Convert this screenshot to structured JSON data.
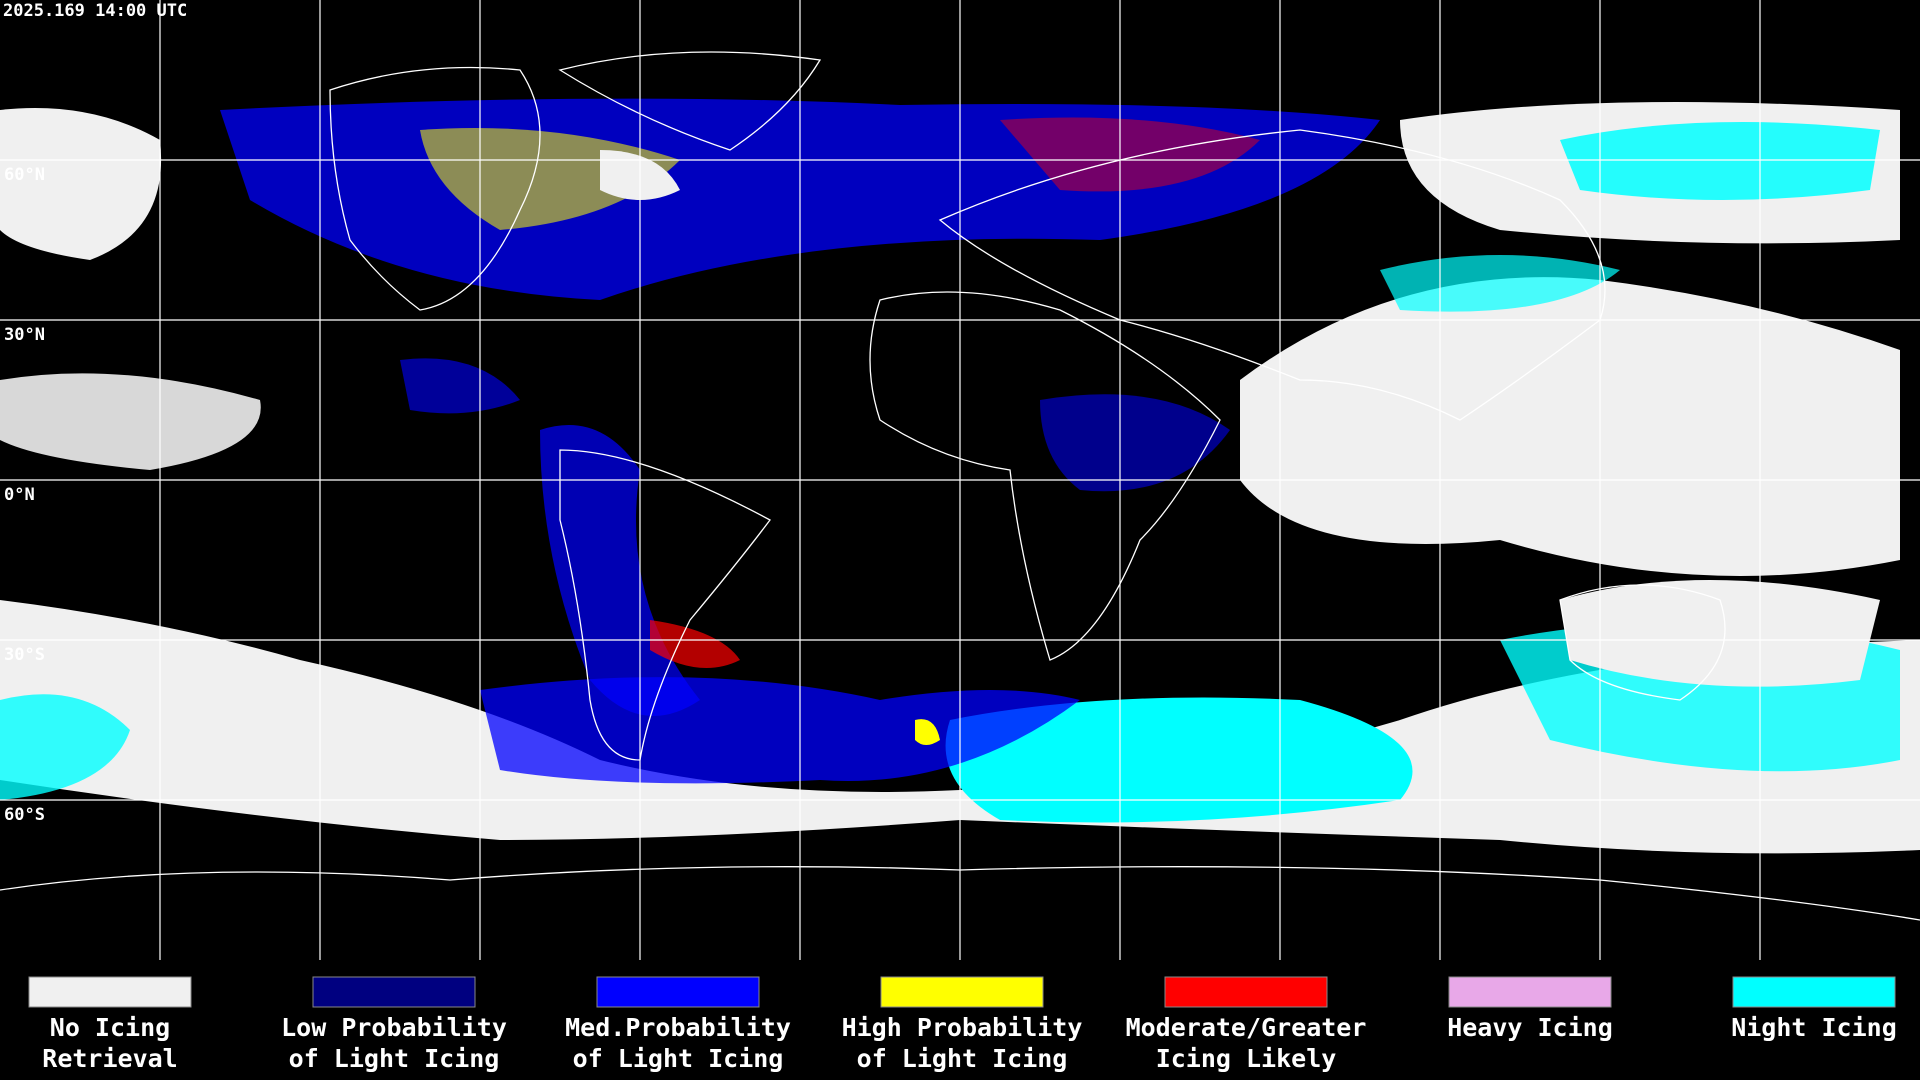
{
  "header": {
    "timestamp": "2025.169 14:00 UTC"
  },
  "map": {
    "lat_labels": [
      "60°N",
      "30°N",
      "0°N",
      "30°S",
      "60°S"
    ]
  },
  "legend": {
    "items": [
      {
        "color": "#f0f0f0",
        "lines": [
          "No Icing",
          "Retrieval"
        ]
      },
      {
        "color": "#000080",
        "lines": [
          "Low Probability",
          "of Light Icing"
        ]
      },
      {
        "color": "#0000ff",
        "lines": [
          "Med.Probability",
          "of Light Icing"
        ]
      },
      {
        "color": "#ffff00",
        "lines": [
          "High Probability",
          "of Light Icing"
        ]
      },
      {
        "color": "#ff0000",
        "lines": [
          "Moderate/Greater",
          "Icing Likely"
        ]
      },
      {
        "color": "#e8a8e8",
        "lines": [
          "Heavy Icing"
        ]
      },
      {
        "color": "#00ffff",
        "lines": [
          "Night Icing"
        ]
      }
    ]
  }
}
